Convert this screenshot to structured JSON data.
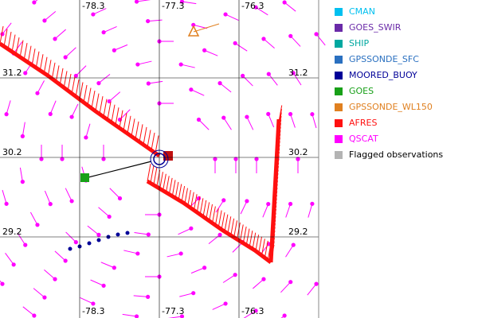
{
  "map": {
    "longitudes": [
      "-78.3",
      "-77.3",
      "-76.3"
    ],
    "latitudes": [
      "31.2",
      "30.2",
      "29.2"
    ],
    "legend": [
      {
        "label": "CMAN",
        "color": "#00c0f0"
      },
      {
        "label": "GOES_SWIR",
        "color": "#6a2aa8"
      },
      {
        "label": "SHIP",
        "color": "#00a8a0"
      },
      {
        "label": "GPSSONDE_SFC",
        "color": "#2a70c0"
      },
      {
        "label": "MOORED_BUOY",
        "color": "#000098"
      },
      {
        "label": "GOES",
        "color": "#18a018"
      },
      {
        "label": "GPSSONDE_WL150",
        "color": "#e08020"
      },
      {
        "label": "AFRES",
        "color": "#ff1010"
      },
      {
        "label": "QSCAT",
        "color": "#ff00ff"
      },
      {
        "label": "Flagged observations",
        "color": "#b4b4b4"
      }
    ]
  }
}
